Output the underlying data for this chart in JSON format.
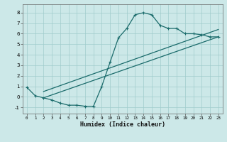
{
  "xlabel": "Humidex (Indice chaleur)",
  "bg_color": "#cce8e8",
  "grid_color": "#a0cccc",
  "line_color": "#1a6b6b",
  "xlim": [
    -0.5,
    23.5
  ],
  "ylim": [
    -1.6,
    8.8
  ],
  "xticks": [
    0,
    1,
    2,
    3,
    4,
    5,
    6,
    7,
    8,
    9,
    10,
    11,
    12,
    13,
    14,
    15,
    16,
    17,
    18,
    19,
    20,
    21,
    22,
    23
  ],
  "yticks": [
    -1,
    0,
    1,
    2,
    3,
    4,
    5,
    6,
    7,
    8
  ],
  "main_x": [
    0,
    1,
    2,
    3,
    4,
    5,
    6,
    7,
    8,
    9,
    10,
    11,
    12,
    13,
    14,
    15,
    16,
    17,
    18,
    19,
    20,
    21,
    22,
    23
  ],
  "main_y": [
    0.9,
    0.1,
    -0.1,
    -0.3,
    -0.6,
    -0.8,
    -0.8,
    -0.9,
    -0.9,
    1.0,
    3.3,
    5.6,
    6.5,
    7.8,
    8.0,
    7.8,
    6.8,
    6.5,
    6.5,
    6.0,
    6.0,
    5.9,
    5.7,
    5.7
  ],
  "line1_x": [
    2,
    23
  ],
  "line1_y": [
    -0.1,
    5.7
  ],
  "line2_x": [
    2,
    23
  ],
  "line2_y": [
    0.5,
    6.4
  ],
  "line_width": 0.9,
  "marker_size": 2.5
}
